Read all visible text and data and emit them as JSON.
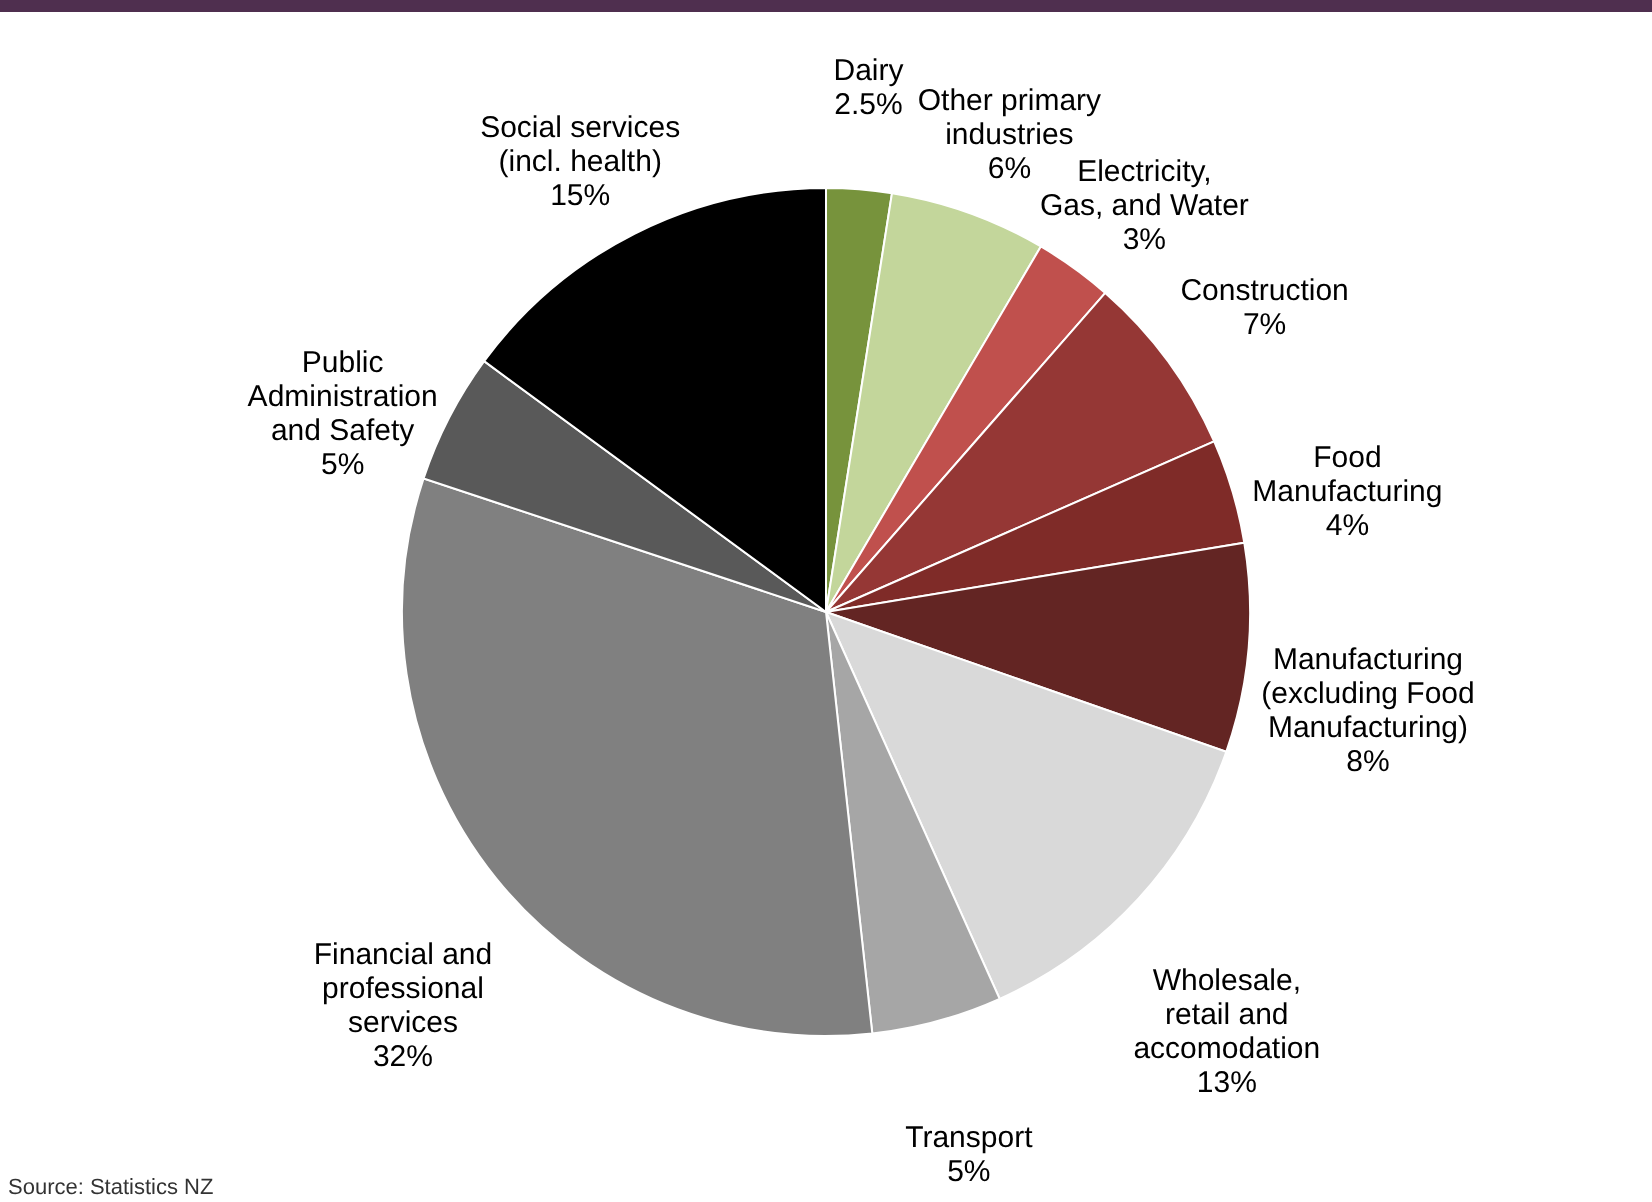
{
  "chart_data": {
    "type": "pie",
    "categories": [
      "Dairy",
      "Other primary industries",
      "Electricity, Gas, and Water",
      "Construction",
      "Food Manufacturing",
      "Manufacturing (excluding Food Manufacturing)",
      "Wholesale, retail and accomodation",
      "Transport",
      "Financial and professional services",
      "Public Administration and Safety",
      "Social services (incl. health)"
    ],
    "values": [
      2.5,
      6,
      3,
      7,
      4,
      8,
      13,
      5,
      32,
      5,
      15
    ],
    "value_labels": [
      "2.5%",
      "6%",
      "3%",
      "7%",
      "4%",
      "8%",
      "13%",
      "5%",
      "32%",
      "5%",
      "15%"
    ],
    "colors": [
      "#77933c",
      "#c3d69b",
      "#c0504d",
      "#953735",
      "#7f2b28",
      "#632523",
      "#d9d9d9",
      "#a6a6a6",
      "#808080",
      "#595959",
      "#000000"
    ],
    "annotations": [
      "Source: Statistics NZ"
    ]
  }
}
